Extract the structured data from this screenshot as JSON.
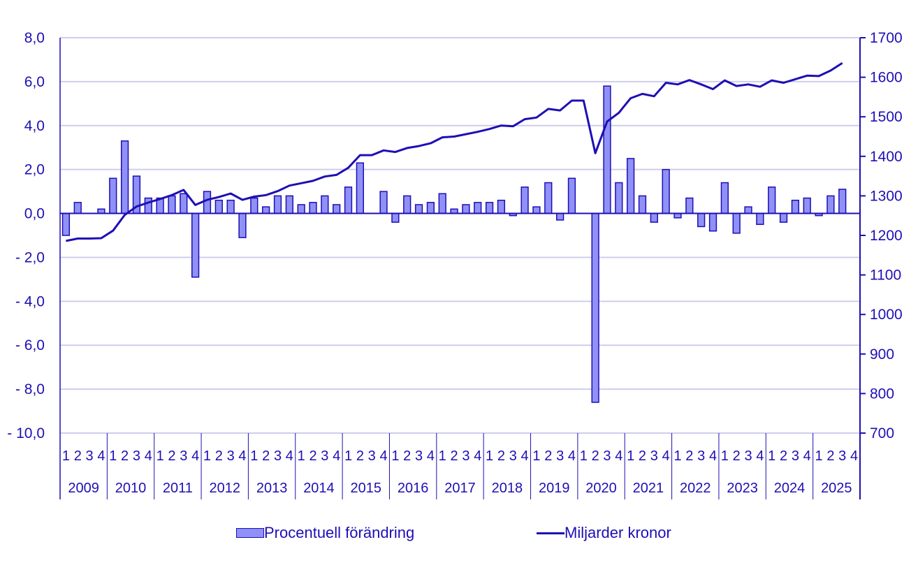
{
  "chart_data": {
    "type": "bar+line",
    "title": "",
    "x_groups": [
      "2009",
      "2010",
      "2011",
      "2012",
      "2013",
      "2014",
      "2015",
      "2016",
      "2017",
      "2018",
      "2019",
      "2020",
      "2021",
      "2022",
      "2023",
      "2024",
      "2025"
    ],
    "quarter_labels": [
      "1",
      "2",
      "3",
      "4"
    ],
    "left_axis": {
      "label": "",
      "ticks": [
        "8,0",
        "6,0",
        "4,0",
        "2,0",
        "0,0",
        "- 2,0",
        "- 4,0",
        "- 6,0",
        "- 8,0",
        "- 10,0"
      ],
      "ylim": [
        -10,
        8
      ]
    },
    "right_axis": {
      "label": "",
      "ticks": [
        "1700",
        "1600",
        "1500",
        "1400",
        "1300",
        "1200",
        "1100",
        "1000",
        "900",
        "800",
        "700"
      ],
      "ylim": [
        700,
        1700
      ]
    },
    "grid": true,
    "legend_position": "bottom",
    "series": [
      {
        "name": "Procentuell förändring",
        "type": "bar",
        "axis": "left",
        "color": "#8f91f6",
        "edge_color": "#1e0fb4",
        "values": [
          -1.0,
          0.5,
          0.0,
          0.2,
          1.6,
          3.3,
          1.7,
          0.7,
          0.7,
          0.8,
          0.9,
          -2.9,
          1.0,
          0.6,
          0.6,
          -1.1,
          0.7,
          0.3,
          0.8,
          0.8,
          0.4,
          0.5,
          0.8,
          0.4,
          1.2,
          2.3,
          0.0,
          1.0,
          -0.4,
          0.8,
          0.4,
          0.5,
          0.9,
          0.2,
          0.4,
          0.5,
          0.5,
          0.6,
          -0.1,
          1.2,
          0.3,
          1.4,
          -0.3,
          1.6,
          0.0,
          -8.6,
          5.8,
          1.4,
          2.5,
          0.8,
          -0.4,
          2.0,
          -0.2,
          0.7,
          -0.6,
          -0.8,
          1.4,
          -0.9,
          0.3,
          -0.5,
          1.2,
          -0.4,
          0.6,
          0.7,
          -0.1,
          0.8,
          1.1
        ]
      },
      {
        "name": "Miljarder kronor",
        "type": "line",
        "axis": "right",
        "color": "#1e0fb4",
        "values": [
          1186,
          1192,
          1192,
          1193,
          1212,
          1252,
          1273,
          1283,
          1292,
          1302,
          1315,
          1277,
          1290,
          1297,
          1306,
          1290,
          1298,
          1302,
          1312,
          1326,
          1332,
          1338,
          1349,
          1353,
          1371,
          1403,
          1403,
          1415,
          1411,
          1421,
          1426,
          1433,
          1448,
          1450,
          1456,
          1462,
          1469,
          1478,
          1476,
          1494,
          1498,
          1520,
          1516,
          1541,
          1541,
          1408,
          1488,
          1510,
          1547,
          1558,
          1552,
          1586,
          1582,
          1593,
          1582,
          1570,
          1592,
          1578,
          1582,
          1576,
          1592,
          1586,
          1595,
          1604,
          1603,
          1617,
          1636
        ]
      }
    ]
  },
  "legend": {
    "bar_label": "Procentuell förändring",
    "line_label": "Miljarder kronor"
  }
}
